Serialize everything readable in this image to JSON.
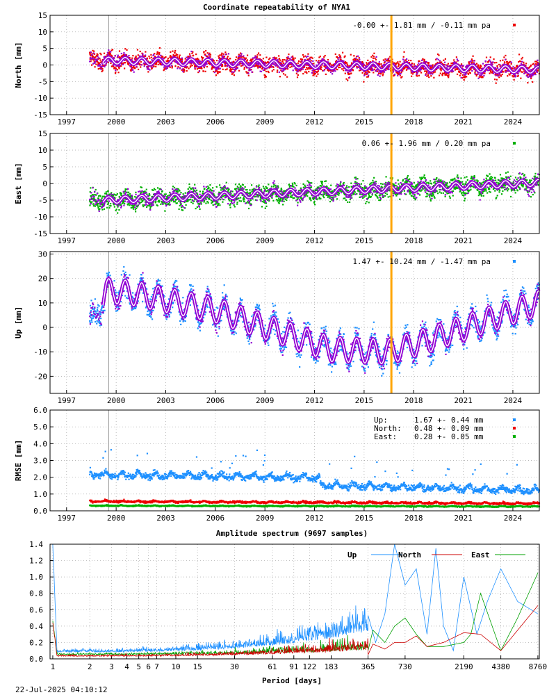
{
  "chart_data": [
    {
      "type": "scatter",
      "title": "Coordinate repeatability of NYA1",
      "ylabel": "North [mm]",
      "xlim": [
        1996.0,
        2025.6
      ],
      "ylim": [
        -15,
        15
      ],
      "x_ticks": [
        1997,
        2000,
        2003,
        2006,
        2009,
        2012,
        2015,
        2018,
        2021,
        2024
      ],
      "y_ticks": [
        -15,
        -10,
        -5,
        0,
        5,
        10,
        15
      ],
      "grid": true,
      "legend": {
        "text": "-0.00 +- 1.81 mm / -0.11 mm pa",
        "position": "top-right",
        "color": "#ee0000"
      },
      "marker_line": {
        "x": 2016.65,
        "color": "#ffa500"
      },
      "gap_line": {
        "x": 1999.55,
        "color": "#999999"
      },
      "series": [
        {
          "name": "North",
          "color": "#ee0000",
          "start": 1998.4,
          "end": 2025.6,
          "offset": 0.0,
          "trend": -0.11,
          "annual_amp": 1.0,
          "noise": 1.81
        }
      ],
      "overlay": {
        "color": "#9400d3",
        "fit_color": "#ffffff",
        "offset": 0.0,
        "trend": -0.11,
        "annual_amp": 1.0
      }
    },
    {
      "type": "scatter",
      "ylabel": "East [mm]",
      "xlim": [
        1996.0,
        2025.6
      ],
      "ylim": [
        -15,
        15
      ],
      "x_ticks": [
        1997,
        2000,
        2003,
        2006,
        2009,
        2012,
        2015,
        2018,
        2021,
        2024
      ],
      "y_ticks": [
        -15,
        -10,
        -5,
        0,
        5,
        10,
        15
      ],
      "grid": true,
      "legend": {
        "text": "0.06 +- 1.96 mm /  0.20 mm pa",
        "position": "top-right",
        "color": "#00b000"
      },
      "marker_line": {
        "x": 2016.65,
        "color": "#ffa500"
      },
      "gap_line": {
        "x": 1999.55,
        "color": "#999999"
      },
      "series": [
        {
          "name": "East",
          "color": "#00b000",
          "start": 1998.4,
          "end": 2025.6,
          "offset": -2.5,
          "trend": 0.2,
          "annual_amp": 1.0,
          "noise": 1.96
        }
      ],
      "overlay": {
        "color": "#9400d3",
        "fit_color": "#ffffff",
        "offset": -2.5,
        "trend": 0.2,
        "annual_amp": 1.0
      }
    },
    {
      "type": "scatter",
      "ylabel": "Up [mm]",
      "xlim": [
        1996.0,
        2025.6
      ],
      "ylim": [
        -27,
        31
      ],
      "x_ticks": [
        1997,
        2000,
        2003,
        2006,
        2009,
        2012,
        2015,
        2018,
        2021,
        2024
      ],
      "y_ticks": [
        -20,
        -10,
        0,
        10,
        20,
        30
      ],
      "grid": true,
      "legend": {
        "text": "1.47 +- 10.24 mm / -1.47 mm pa",
        "position": "top-right",
        "color": "#1e90ff"
      },
      "marker_line": {
        "x": 2016.65,
        "color": "#ffa500"
      },
      "gap_line": {
        "x": 1999.55,
        "color": "#999999"
      },
      "series": [
        {
          "name": "Up",
          "color": "#1e90ff",
          "start": 1998.4,
          "end": 2025.6,
          "noise": 3.5,
          "trend_knots": [
            [
              1998.4,
              0
            ],
            [
              1999.4,
              15
            ],
            [
              2001.0,
              14
            ],
            [
              2006.0,
              7
            ],
            [
              2010.0,
              -2
            ],
            [
              2013.0,
              -9
            ],
            [
              2016.5,
              -10
            ],
            [
              2019.0,
              -5
            ],
            [
              2022.0,
              2
            ],
            [
              2025.6,
              10
            ]
          ],
          "annual_amp": 5.0
        }
      ],
      "overlay": {
        "color": "#9400d3",
        "fit_color": "#ffffff"
      }
    },
    {
      "type": "scatter",
      "ylabel": "RMSE [mm]",
      "xlim": [
        1996.0,
        2025.6
      ],
      "ylim": [
        0.0,
        6.0
      ],
      "x_ticks": [
        1997,
        2000,
        2003,
        2006,
        2009,
        2012,
        2015,
        2018,
        2021,
        2024
      ],
      "y_ticks": [
        0.0,
        1.0,
        2.0,
        3.0,
        4.0,
        5.0,
        6.0
      ],
      "grid": true,
      "gap_line": {
        "x": 1999.55,
        "color": "#999999"
      },
      "legend": [
        {
          "label": "Up:",
          "text": "1.67 +- 0.44 mm",
          "color": "#1e90ff"
        },
        {
          "label": "North:",
          "text": "0.48 +- 0.09 mm",
          "color": "#ee0000"
        },
        {
          "label": "East:",
          "text": "0.28 +- 0.05 mm",
          "color": "#00b000"
        }
      ],
      "series": [
        {
          "name": "Up",
          "color": "#1e90ff",
          "start": 1998.4,
          "end": 2025.6,
          "levels": [
            [
              1998.4,
              2.1
            ],
            [
              2012.3,
              1.9
            ],
            [
              2012.35,
              1.45
            ],
            [
              2025.6,
              1.15
            ]
          ],
          "annual_amp": 0.25,
          "noise": 0.15
        },
        {
          "name": "North",
          "color": "#ee0000",
          "start": 1998.4,
          "end": 2025.6,
          "levels": [
            [
              1998.4,
              0.55
            ],
            [
              2025.6,
              0.42
            ]
          ],
          "annual_amp": 0.06,
          "noise": 0.05
        },
        {
          "name": "East",
          "color": "#00b000",
          "start": 1998.4,
          "end": 2025.6,
          "levels": [
            [
              1998.4,
              0.3
            ],
            [
              2025.6,
              0.25
            ]
          ],
          "annual_amp": 0.03,
          "noise": 0.03
        }
      ]
    },
    {
      "type": "line",
      "title": "Amplitude spectrum (9697 samples)",
      "xlabel": "Period [days]",
      "x_scale": "log",
      "x_ticks": [
        1,
        2,
        3,
        4,
        5,
        6,
        7,
        10,
        15,
        30,
        61,
        91,
        122,
        183,
        365,
        730,
        2190,
        4380,
        8760
      ],
      "ylim": [
        0.0,
        1.4
      ],
      "y_ticks": [
        0.0,
        0.2,
        0.4,
        0.6,
        0.8,
        1.0,
        1.2,
        1.4
      ],
      "grid": true,
      "legend_position": "top-right",
      "series": [
        {
          "name": "Up",
          "color": "#1e90ff"
        },
        {
          "name": "North",
          "color": "#cc0000"
        },
        {
          "name": "East",
          "color": "#00a000"
        }
      ],
      "long_period_peaks": {
        "Up": [
          [
            365,
            0.53
          ],
          [
            420,
            0.2
          ],
          [
            500,
            0.55
          ],
          [
            600,
            1.4
          ],
          [
            730,
            0.9
          ],
          [
            900,
            1.1
          ],
          [
            1100,
            0.3
          ],
          [
            1300,
            1.35
          ],
          [
            1500,
            0.4
          ],
          [
            1800,
            0.1
          ],
          [
            2190,
            1.0
          ],
          [
            2800,
            0.3
          ],
          [
            3400,
            0.7
          ],
          [
            4380,
            1.1
          ],
          [
            6000,
            0.7
          ],
          [
            8760,
            0.55
          ]
        ],
        "North": [
          [
            365,
            0.05
          ],
          [
            400,
            0.18
          ],
          [
            500,
            0.12
          ],
          [
            600,
            0.2
          ],
          [
            730,
            0.2
          ],
          [
            900,
            0.28
          ],
          [
            1100,
            0.15
          ],
          [
            1500,
            0.2
          ],
          [
            2190,
            0.32
          ],
          [
            3000,
            0.3
          ],
          [
            4380,
            0.1
          ],
          [
            6000,
            0.35
          ],
          [
            8760,
            0.65
          ]
        ],
        "East": [
          [
            365,
            0.1
          ],
          [
            400,
            0.35
          ],
          [
            500,
            0.2
          ],
          [
            600,
            0.4
          ],
          [
            730,
            0.5
          ],
          [
            900,
            0.3
          ],
          [
            1100,
            0.15
          ],
          [
            1500,
            0.15
          ],
          [
            2190,
            0.2
          ],
          [
            2500,
            0.3
          ],
          [
            3000,
            0.8
          ],
          [
            4380,
            0.1
          ],
          [
            6000,
            0.5
          ],
          [
            8760,
            1.05
          ]
        ]
      }
    }
  ],
  "footer": {
    "timestamp": "22-Jul-2025 04:10:12"
  }
}
